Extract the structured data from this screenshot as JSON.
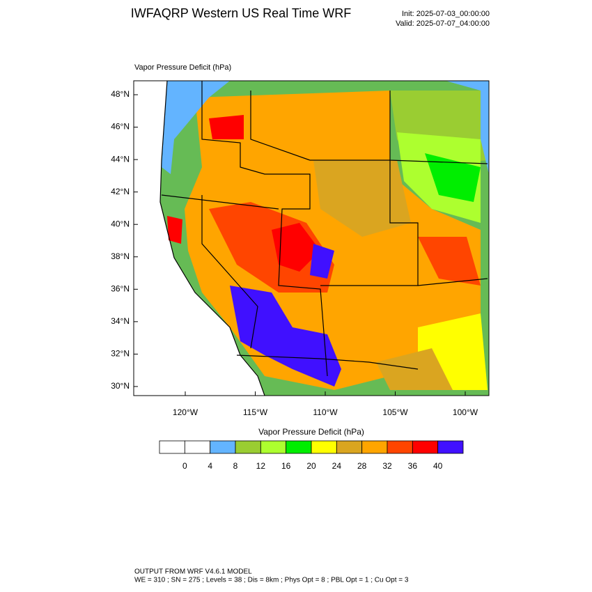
{
  "header": {
    "title": "IWFAQRP Western US Real Time WRF",
    "init": "Init: 2025-07-03_00:00:00",
    "valid": "Valid: 2025-07-07_04:00:00"
  },
  "map": {
    "label": "Vapor Pressure Deficit   (hPa)",
    "lat_labels": [
      "48°N",
      "46°N",
      "44°N",
      "42°N",
      "40°N",
      "38°N",
      "36°N",
      "34°N",
      "32°N",
      "30°N"
    ],
    "lon_labels": [
      "120°W",
      "115°W",
      "110°W",
      "105°W",
      "100°W"
    ]
  },
  "colorbar": {
    "title": "Vapor Pressure Deficit  (hPa)",
    "colors": [
      "#ffffff",
      "#ffffff",
      "#63b4ff",
      "#9acd32",
      "#adff2f",
      "#00ee00",
      "#ffff00",
      "#daa520",
      "#ffa500",
      "#ff4500",
      "#ff0000",
      "#4010ff"
    ],
    "labels": [
      0,
      4,
      8,
      12,
      16,
      20,
      24,
      28,
      32,
      36,
      40
    ]
  },
  "footer": {
    "line1": "OUTPUT FROM WRF V4.6.1 MODEL",
    "line2": "WE = 310 ; SN = 275 ; Levels = 38 ; Dis = 8km ; Phys Opt = 8 ; PBL Opt = 1 ; Cu Opt = 3"
  }
}
